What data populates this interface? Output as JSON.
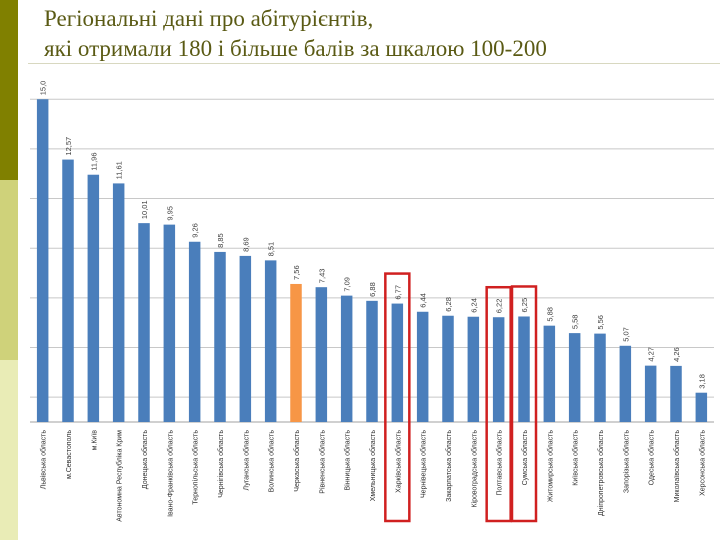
{
  "title_line1": "Регіональні дані про абітурієнтів,",
  "title_line2": "які отримали 180 і більше балів за шкалою 100-200",
  "colors": {
    "bar": "#4a7ebb",
    "highlight_bar": "#f79646",
    "box": "#d02020",
    "grid": "#c8c8c8",
    "title": "#5a5a14"
  },
  "chart_data": {
    "type": "bar",
    "title": "Регіональні дані про абітурієнтів, які отримали 180 і більше балів за шкалою 100-200",
    "xlabel": "",
    "ylabel": "",
    "ylim": [
      2,
      16.5
    ],
    "grid": true,
    "categories": [
      "Львівська область",
      "м.Севастополь",
      "м.Київ",
      "Автономна Республіка Крим",
      "Донецька область",
      "Івано-Франківська область",
      "Тернопільська область",
      "Чернігівська область",
      "Луганська область",
      "Волинська область",
      "Черкаська область",
      "Рівненська область",
      "Вінницька область",
      "Хмельницька область",
      "Харківська область",
      "Чернівецька область",
      "Закарпатська область",
      "Кіровоградська область",
      "Полтавська область",
      "Сумська область",
      "Житомирська область",
      "Київська область",
      "Дніпропетровська область",
      "Запорізька область",
      "Одеська область",
      "Миколаївська область",
      "Херсонська область"
    ],
    "values": [
      15.0,
      12.57,
      11.96,
      11.61,
      10.01,
      9.95,
      9.26,
      8.85,
      8.69,
      8.51,
      7.56,
      7.43,
      7.09,
      6.88,
      6.77,
      6.44,
      6.28,
      6.24,
      6.22,
      6.25,
      5.88,
      5.58,
      5.56,
      5.07,
      4.27,
      4.26,
      3.18
    ],
    "value_labels": [
      "15,0",
      "12,57",
      "11,96",
      "11,61",
      "10,01",
      "9,95",
      "9,26",
      "8,85",
      "8,69",
      "8,51",
      "7,56",
      "7,43",
      "7,09",
      "6,88",
      "6,77",
      "6,44",
      "6,28",
      "6,24",
      "6,22",
      "6,25",
      "5,88",
      "5,58",
      "5,56",
      "5,07",
      "4,27",
      "4,26",
      "3,18"
    ],
    "highlight_index": 10,
    "boxed_indices": [
      14,
      18,
      19
    ]
  }
}
